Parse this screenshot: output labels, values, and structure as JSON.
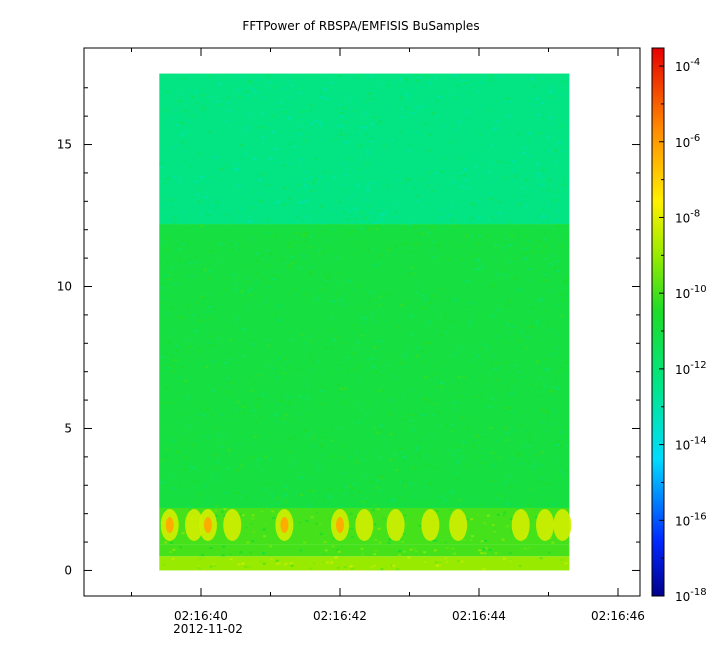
{
  "chart_data": {
    "type": "heatmap",
    "title": "FFTPower of RBSPA/EMFISIS  BuSamples",
    "x_axis": {
      "ticks": [
        "02:16:40",
        "02:16:42",
        "02:16:44",
        "02:16:46"
      ],
      "date_label": "2012-11-02",
      "range_seconds_label": [
        "02:16:38",
        "02:16:46"
      ]
    },
    "y_axis": {
      "ticks": [
        0,
        5,
        10,
        15
      ],
      "range": [
        -0.9,
        18.4
      ]
    },
    "data_extent": {
      "x_start": "02:16:39.4",
      "x_end": "02:16:45.3",
      "y_min": 0,
      "y_max": 17.5
    },
    "colorbar": {
      "scale": "log",
      "range": [
        1e-18,
        0.0003
      ],
      "tick_labels": [
        {
          "base": "10",
          "exp": "-4"
        },
        {
          "base": "10",
          "exp": "-6"
        },
        {
          "base": "10",
          "exp": "-8"
        },
        {
          "base": "10",
          "exp": "-10"
        },
        {
          "base": "10",
          "exp": "-12"
        },
        {
          "base": "10",
          "exp": "-14"
        },
        {
          "base": "10",
          "exp": "-16"
        },
        {
          "base": "10",
          "exp": "-18"
        }
      ],
      "tick_values_log10": [
        -4,
        -6,
        -8,
        -10,
        -12,
        -14,
        -16,
        -18
      ]
    },
    "bands": [
      {
        "y_from": 0,
        "y_to": 0.5,
        "log10_power": -9
      },
      {
        "y_from": 0.5,
        "y_to": 0.9,
        "log10_power": -10
      },
      {
        "y_from": 0.9,
        "y_to": 2.2,
        "log10_power": -10,
        "bursts": true
      },
      {
        "y_from": 2.2,
        "y_to": 12.2,
        "log10_power": -11
      },
      {
        "y_from": 12.2,
        "y_to": 17.5,
        "log10_power": -12.3
      }
    ]
  }
}
